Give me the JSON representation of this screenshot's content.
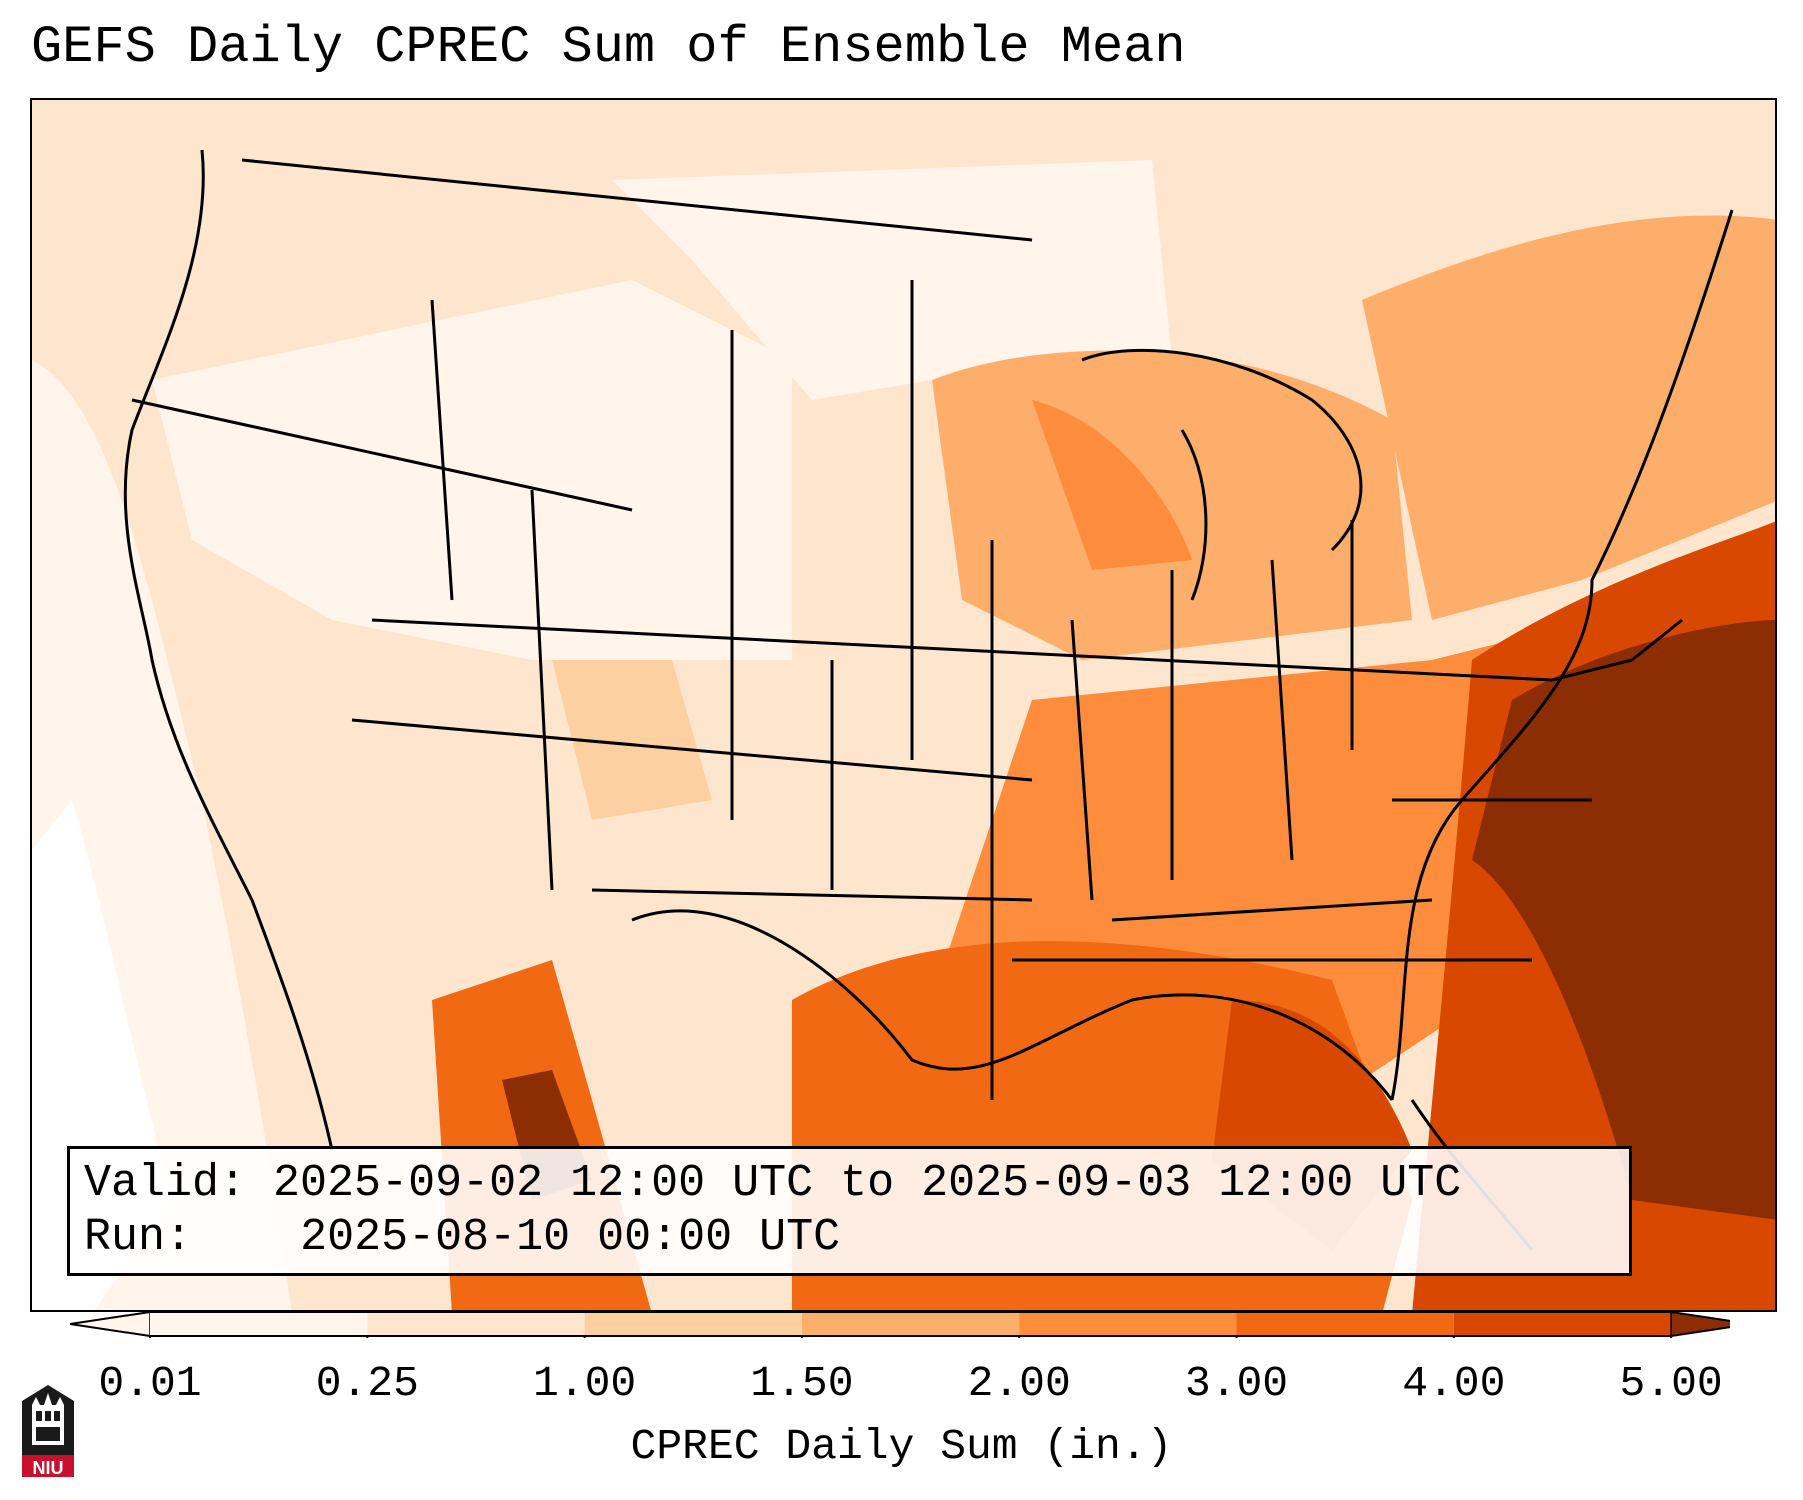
{
  "title": "GEFS Daily CPREC Sum of Ensemble Mean",
  "info": {
    "valid_label": "Valid:",
    "valid_value": "2025-09-02 12:00 UTC to 2025-09-03 12:00 UTC",
    "run_label": "Run:",
    "run_value": "2025-08-10 00:00 UTC"
  },
  "colorbar": {
    "label": "CPREC Daily Sum (in.)",
    "ticks": [
      "0.01",
      "0.25",
      "1.00",
      "1.50",
      "2.00",
      "3.00",
      "4.00",
      "5.00"
    ],
    "levels": [
      0.01,
      0.25,
      1.0,
      1.5,
      2.0,
      3.0,
      4.0,
      5.0
    ],
    "colors": [
      "#fff5eb",
      "#fee6ce",
      "#fdd0a2",
      "#fdae6b",
      "#fd8d3c",
      "#f16913",
      "#d94801",
      "#8c2d04"
    ],
    "extend": "both"
  },
  "logo": {
    "text": "NIU",
    "name": "niu-logo-icon",
    "color": "#c8102e"
  }
}
